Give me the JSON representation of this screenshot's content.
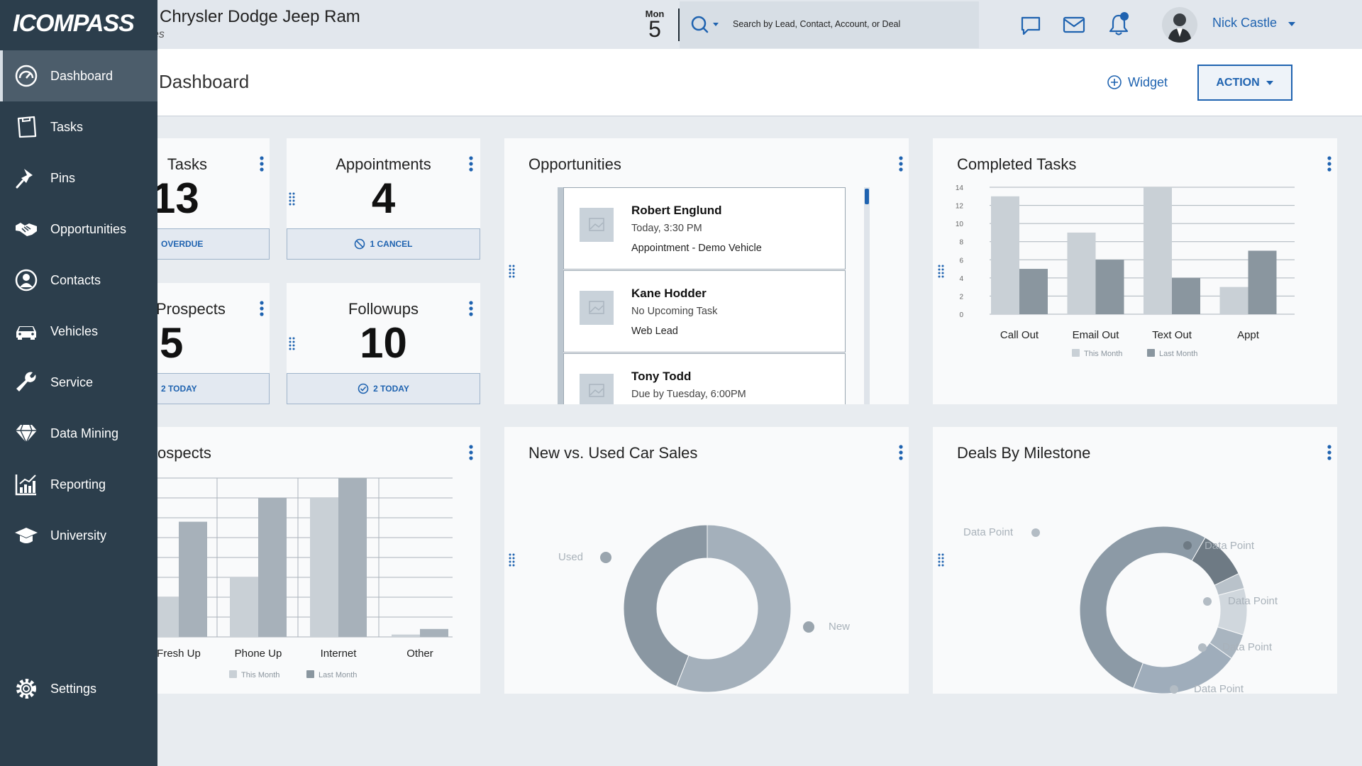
{
  "header": {
    "dealer_name": "Chrysler Dodge Jeep Ram",
    "dealer_sub": "es",
    "date_weekday": "Mon",
    "date_day": "5",
    "search_placeholder": "Search by Lead, Contact, Account, or Deal",
    "user_name": "Nick Castle",
    "icons": [
      "chat-icon",
      "mail-icon",
      "bell-icon"
    ]
  },
  "page": {
    "title": "Dashboard",
    "widget_label": "Widget",
    "action_label": "ACTION"
  },
  "sidebar": {
    "logo": "ICOMPASS",
    "items": [
      {
        "label": "Dashboard",
        "icon": "speedometer-icon"
      },
      {
        "label": "Tasks",
        "icon": "clipboard-icon"
      },
      {
        "label": "Pins",
        "icon": "pin-icon"
      },
      {
        "label": "Opportunities",
        "icon": "handshake-icon"
      },
      {
        "label": "Contacts",
        "icon": "person-icon"
      },
      {
        "label": "Vehicles",
        "icon": "car-icon"
      },
      {
        "label": "Service",
        "icon": "wrench-icon"
      },
      {
        "label": "Data Mining",
        "icon": "diamond-icon"
      },
      {
        "label": "Reporting",
        "icon": "chart-icon"
      },
      {
        "label": "University",
        "icon": "graduation-cap-icon"
      }
    ],
    "settings_label": "Settings"
  },
  "kpis": [
    {
      "title": "Tasks",
      "value": "13",
      "footer": "OVERDUE"
    },
    {
      "title": "Appointments",
      "value": "4",
      "footer": "1 CANCEL"
    },
    {
      "title": "Prospects",
      "value": "5",
      "footer": "2 TODAY"
    },
    {
      "title": "Followups",
      "value": "10",
      "footer": "2 TODAY"
    }
  ],
  "opportunities": {
    "title": "Opportunities",
    "items": [
      {
        "name": "Robert Englund",
        "line2": "Today, 3:30 PM",
        "line3": "Appointment - Demo Vehicle"
      },
      {
        "name": "Kane Hodder",
        "line2": "No Upcoming Task",
        "line3": "Web Lead"
      },
      {
        "name": "Tony Todd",
        "line2": "Due by Tuesday, 6:00PM",
        "line3": ""
      }
    ]
  },
  "completed_tasks_card": {
    "title": "Completed Tasks"
  },
  "prospects_card": {
    "title": "ospects"
  },
  "car_sales_card": {
    "title": "New vs. Used Car Sales"
  },
  "deals_card": {
    "title": "Deals By Milestone"
  },
  "colors": {
    "sidebar": "#2c3e4c",
    "accent": "#1f63b0",
    "bar_light": "#c9d0d6",
    "bar_dark": "#8a969f"
  },
  "chart_data": [
    {
      "type": "bar",
      "title": "Completed Tasks",
      "categories": [
        "Call Out",
        "Email Out",
        "Text Out",
        "Appt"
      ],
      "series": [
        {
          "name": "This Month",
          "values": [
            13,
            9,
            14,
            3
          ]
        },
        {
          "name": "Last Month",
          "values": [
            5,
            6,
            4,
            7
          ]
        }
      ],
      "yticks": [
        "0",
        "2",
        "4",
        "6",
        "8",
        "10",
        "12",
        "14"
      ],
      "ylim": [
        0,
        14
      ],
      "legend": "bottom",
      "grid": true
    },
    {
      "type": "bar",
      "title": "ospects",
      "categories": [
        "Fresh Up",
        "Phone Up",
        "Internet",
        "Other"
      ],
      "series": [
        {
          "name": "This Month",
          "values": [
            5,
            7.5,
            17.5,
            0.3
          ]
        },
        {
          "name": "Last Month",
          "values": [
            14.5,
            17.5,
            20,
            1
          ]
        }
      ],
      "ylim": [
        0,
        20
      ],
      "legend": "bottom",
      "grid": true
    },
    {
      "type": "pie",
      "title": "New vs. Used Car Sales",
      "labels": [
        "New",
        "Used"
      ],
      "values": [
        56,
        44
      ]
    },
    {
      "type": "pie",
      "title": "Deals By Milestone",
      "labels": [
        "Data Point",
        "Data Point",
        "Data Point",
        "Data Point",
        "Data Point",
        "Data Point"
      ],
      "values": [
        9.5,
        3,
        9,
        5,
        21,
        52.5
      ]
    }
  ]
}
